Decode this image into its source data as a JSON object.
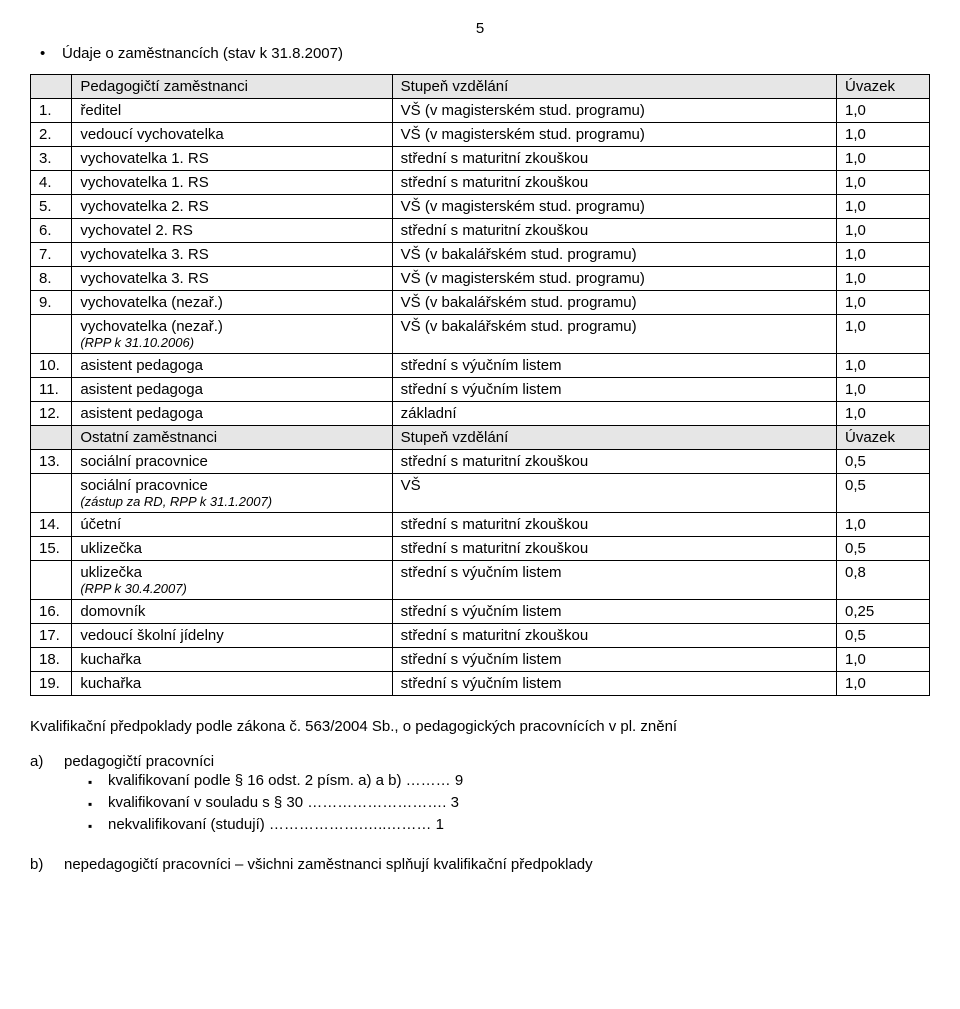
{
  "page_number": "5",
  "title_bullet": "•",
  "title_line": "Údaje o zaměstnancích (stav k 31.8.2007)",
  "table": {
    "header1": {
      "c1": "",
      "c2": "Pedagogičtí zaměstnanci",
      "c3": "Stupeň vzdělání",
      "c4": "Úvazek"
    },
    "rows1": [
      {
        "n": "1.",
        "role": "ředitel",
        "edu": "VŠ (v magisterském stud. programu)",
        "uv": "1,0"
      },
      {
        "n": "2.",
        "role": "vedoucí vychovatelka",
        "edu": "VŠ (v magisterském stud. programu)",
        "uv": "1,0"
      },
      {
        "n": "3.",
        "role": "vychovatelka 1. RS",
        "edu": "střední s maturitní zkouškou",
        "uv": "1,0"
      },
      {
        "n": "4.",
        "role": "vychovatelka 1. RS",
        "edu": "střední s maturitní zkouškou",
        "uv": "1,0"
      },
      {
        "n": "5.",
        "role": "vychovatelka 2. RS",
        "edu": "VŠ (v magisterském stud. programu)",
        "uv": "1,0"
      },
      {
        "n": "6.",
        "role": "vychovatel   2. RS",
        "edu": "střední s maturitní zkouškou",
        "uv": "1,0"
      },
      {
        "n": "7.",
        "role": "vychovatelka 3. RS",
        "edu": "VŠ (v bakalářském stud. programu)",
        "uv": "1,0"
      },
      {
        "n": "8.",
        "role": "vychovatelka 3. RS",
        "edu": "VŠ (v magisterském stud. programu)",
        "uv": "1,0"
      },
      {
        "n": "9.",
        "role": "vychovatelka (nezař.)",
        "edu": "VŠ (v bakalářském stud. programu)",
        "uv": "1,0"
      },
      {
        "n": "",
        "role": "vychovatelka (nezař.)",
        "note": "(RPP k 31.10.2006)",
        "edu": "VŠ (v bakalářském stud. programu)",
        "uv": "1,0"
      },
      {
        "n": "10.",
        "role": "asistent pedagoga",
        "edu": "střední s výučním listem",
        "uv": "1,0"
      },
      {
        "n": "11.",
        "role": "asistent pedagoga",
        "edu": "střední s výučním listem",
        "uv": "1,0"
      },
      {
        "n": "12.",
        "role": "asistent pedagoga",
        "edu": "základní",
        "uv": "1,0"
      }
    ],
    "header2": {
      "c1": "",
      "c2": "Ostatní zaměstnanci",
      "c3": "Stupeň vzdělání",
      "c4": "Úvazek"
    },
    "rows2": [
      {
        "n": "13.",
        "role": "sociální pracovnice",
        "edu": "střední s maturitní zkouškou",
        "uv": "0,5"
      },
      {
        "n": "",
        "role": "sociální pracovnice",
        "note": "(zástup za RD, RPP k 31.1.2007)",
        "edu": "VŠ",
        "uv": "0,5"
      },
      {
        "n": "14.",
        "role": "účetní",
        "edu": "střední s maturitní zkouškou",
        "uv": "1,0"
      },
      {
        "n": "15.",
        "role": "uklizečka",
        "edu": "střední s maturitní zkouškou",
        "uv": "0,5"
      },
      {
        "n": "",
        "role": "uklizečka",
        "note": "(RPP k 30.4.2007)",
        "edu": "střední s výučním listem",
        "uv": "0,8"
      },
      {
        "n": "16.",
        "role": "domovník",
        "edu": "střední s výučním listem",
        "uv": "0,25"
      },
      {
        "n": "17.",
        "role": "vedoucí školní jídelny",
        "edu": "střední s maturitní zkouškou",
        "uv": "0,5"
      },
      {
        "n": "18.",
        "role": "kuchařka",
        "edu": "střední s výučním listem",
        "uv": "1,0"
      },
      {
        "n": "19.",
        "role": "kuchařka",
        "edu": "střední s výučním listem",
        "uv": "1,0"
      }
    ]
  },
  "post_line": "Kvalifikační předpoklady podle zákona č. 563/2004 Sb., o pedagogických pracovnících v pl. znění",
  "list_a": {
    "label": "a)",
    "text": "pedagogičtí pracovníci",
    "items": [
      "kvalifikovaní podle § 16 odst. 2 písm. a) a b) ……… 9",
      "kvalifikovaní v souladu s § 30 ………………………. 3",
      "nekvalifikovaní (studují) ……………….…..……… 1"
    ]
  },
  "list_b": {
    "label": "b)",
    "text": "nepedagogičtí pracovníci – všichni zaměstnanci splňují kvalifikační předpoklady"
  },
  "square_mark": "▪"
}
